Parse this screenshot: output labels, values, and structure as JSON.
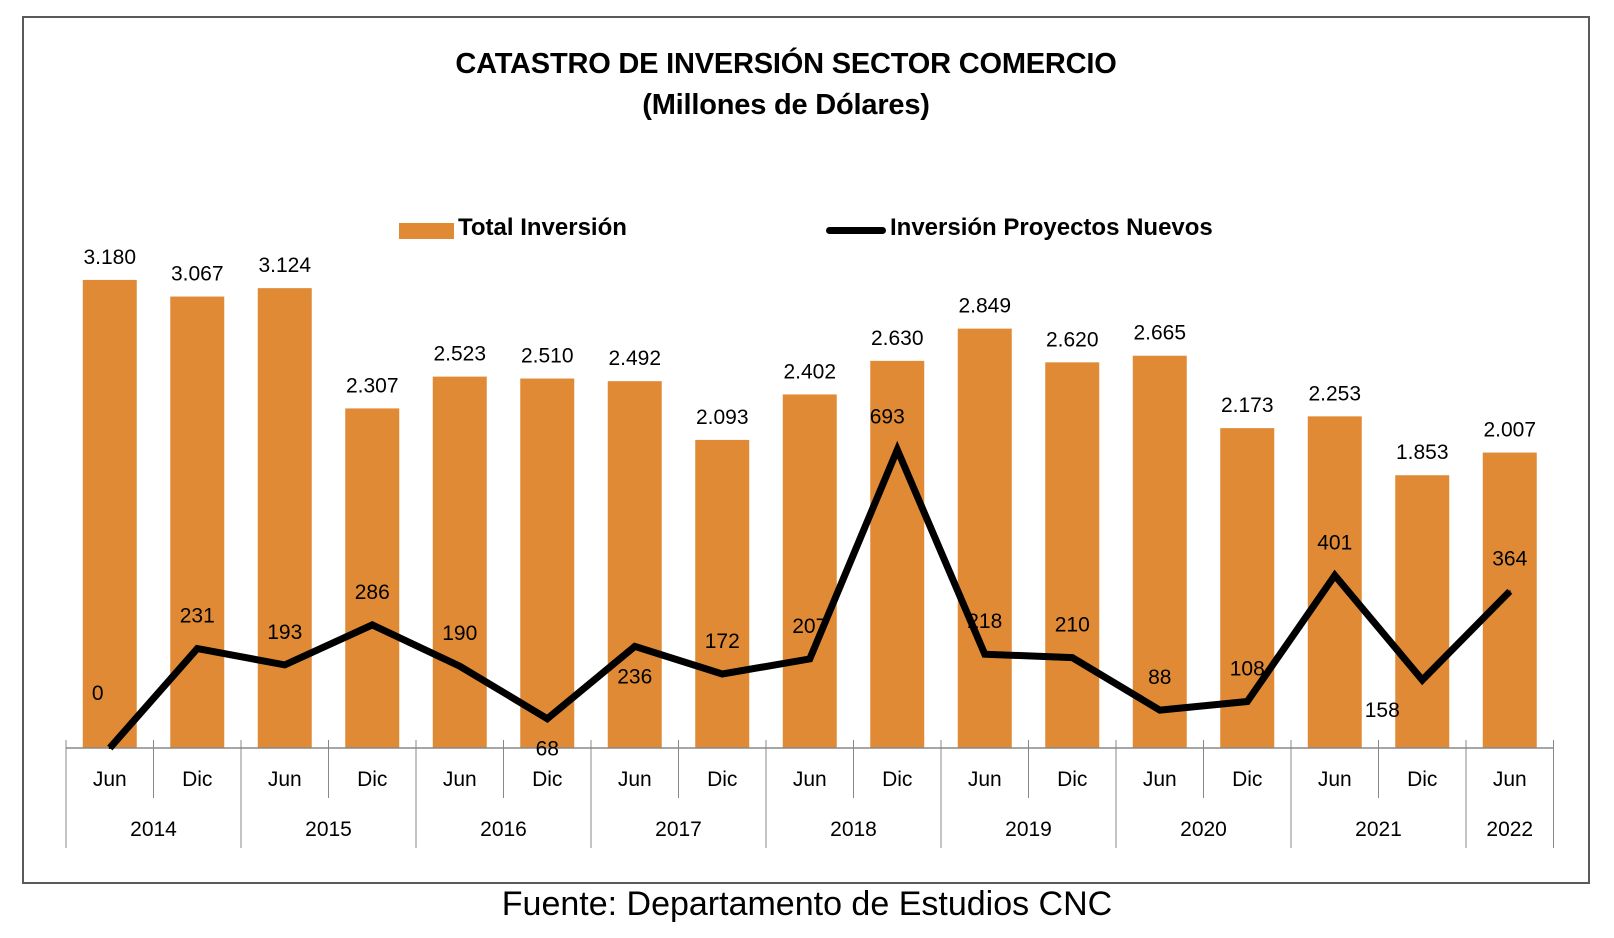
{
  "title": "CATASTRO DE INVERSIÓN SECTOR COMERCIO",
  "subtitle": "(Millones de Dólares)",
  "source": "Fuente: Departamento de Estudios CNC",
  "colors": {
    "bar": "#E08A36",
    "line": "#000000"
  },
  "chart_data": {
    "type": "bar",
    "categories": [
      "Jun",
      "Dic",
      "Jun",
      "Dic",
      "Jun",
      "Dic",
      "Jun",
      "Dic",
      "Jun",
      "Dic",
      "Jun",
      "Dic",
      "Jun",
      "Dic",
      "Jun",
      "Dic",
      "Jun"
    ],
    "year_groups": [
      {
        "label": "2014",
        "span": 2
      },
      {
        "label": "2015",
        "span": 2
      },
      {
        "label": "2016",
        "span": 2
      },
      {
        "label": "2017",
        "span": 2
      },
      {
        "label": "2018",
        "span": 2
      },
      {
        "label": "2019",
        "span": 2
      },
      {
        "label": "2020",
        "span": 2
      },
      {
        "label": "2021",
        "span": 2
      },
      {
        "label": "2022",
        "span": 1
      }
    ],
    "series": [
      {
        "name": "Total Inversión",
        "type": "bar",
        "values": [
          3180,
          3067,
          3124,
          2307,
          2523,
          2510,
          2492,
          2093,
          2402,
          2630,
          2849,
          2620,
          2665,
          2173,
          2253,
          1853,
          2007
        ],
        "labels": [
          "3.180",
          "3.067",
          "3.124",
          "2.307",
          "2.523",
          "2.510",
          "2.492",
          "2.093",
          "2.402",
          "2.630",
          "2.849",
          "2.620",
          "2.665",
          "2.173",
          "2.253",
          "1.853",
          "2.007"
        ]
      },
      {
        "name": "Inversión Proyectos Nuevos",
        "type": "line",
        "values": [
          0,
          231,
          193,
          286,
          190,
          68,
          236,
          172,
          207,
          693,
          218,
          210,
          88,
          108,
          401,
          158,
          364
        ],
        "labels": [
          "0",
          "231",
          "193",
          "286",
          "190",
          "68",
          "236",
          "172",
          "207",
          "693",
          "218",
          "210",
          "88",
          "108",
          "401",
          "158",
          "364"
        ]
      }
    ],
    "legend": "top",
    "grid": false
  }
}
